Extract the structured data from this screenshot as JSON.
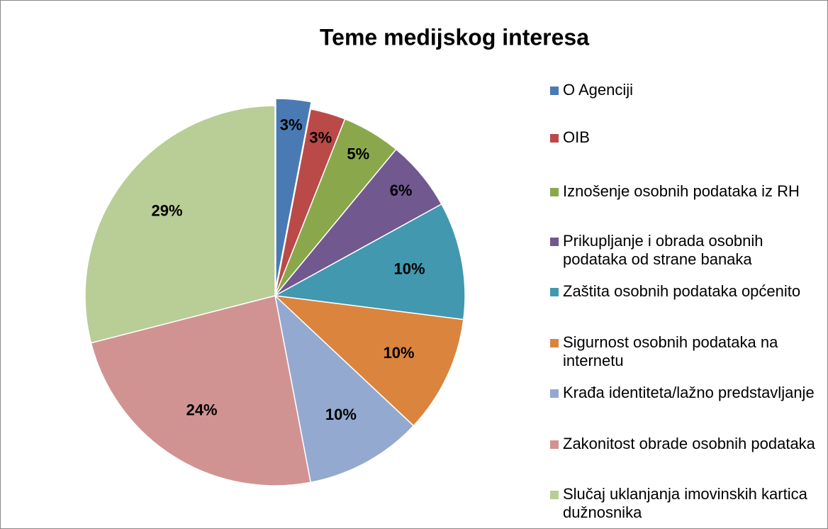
{
  "chart_data": {
    "type": "pie",
    "title": "Teme  medijskog interesa",
    "categories": [
      "O Agenciji",
      "OIB",
      "Iznošenje osobnih podataka iz RH",
      "Prikupljanje i obrada osobnih podataka od strane banaka",
      "Zaštita osobnih podataka općenito",
      "Sigurnost osobnih podataka na internetu",
      "Krađa identiteta/lažno predstavljanje",
      "Zakonitost obrade osobnih podataka",
      "Slučaj uklanjanja imovinskih kartica dužnosnika"
    ],
    "values": [
      3,
      3,
      5,
      6,
      10,
      10,
      10,
      24,
      29
    ],
    "value_labels": [
      "3%",
      "3%",
      "5%",
      "6%",
      "10%",
      "10%",
      "10%",
      "24%",
      "29%"
    ],
    "colors": [
      "#4a7ab4",
      "#b94a48",
      "#8aa84b",
      "#71588f",
      "#4198af",
      "#db843d",
      "#93a9cf",
      "#d19392",
      "#b9cd96"
    ],
    "exploded": [
      0
    ]
  }
}
